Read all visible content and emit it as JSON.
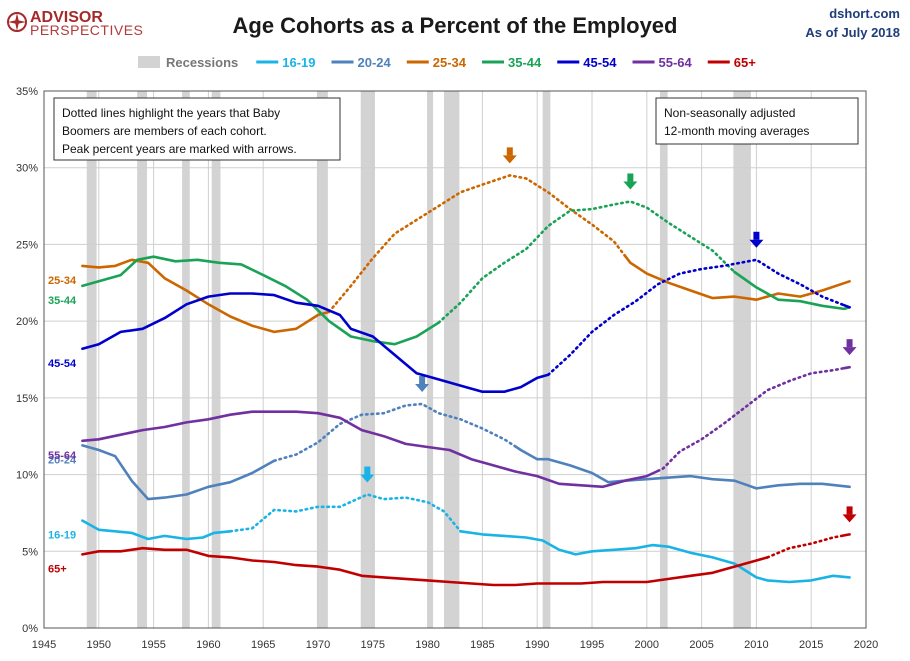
{
  "header": {
    "title": "Age Cohorts as a Percent of the Employed",
    "brand_line1": "ADVISOR",
    "brand_line2": "PERSPECTIVES",
    "source": "dshort.com",
    "date": "As of July 2018"
  },
  "notes": {
    "left": [
      "Dotted lines highlight the years that Baby",
      "Boomers are members of each cohort.",
      "Peak percent years are marked with arrows."
    ],
    "right": [
      "Non-seasonally adjusted",
      "12-month moving averages"
    ]
  },
  "colors": {
    "recession": "#d3d3d3",
    "16-19": "#1ab3e6",
    "20-24": "#4f81bd",
    "25-34": "#cc6600",
    "35-44": "#1aa356",
    "45-54": "#0000cc",
    "55-64": "#7030a0",
    "65+": "#c00000"
  },
  "chart_data": {
    "type": "line",
    "title": "Age Cohorts as a Percent of the Employed",
    "xlim": [
      1945,
      2020
    ],
    "ylim": [
      0,
      35
    ],
    "x_ticks": [
      1945,
      1950,
      1955,
      1960,
      1965,
      1970,
      1975,
      1980,
      1985,
      1990,
      1995,
      2000,
      2005,
      2010,
      2015,
      2020
    ],
    "y_ticks": [
      "0%",
      "5%",
      "10%",
      "15%",
      "20%",
      "25%",
      "30%",
      "35%"
    ],
    "grid": true,
    "legend_position": "top",
    "recession_label": "Recessions",
    "recessions": [
      [
        1948.9,
        1949.8
      ],
      [
        1953.5,
        1954.4
      ],
      [
        1957.6,
        1958.3
      ],
      [
        1960.3,
        1961.1
      ],
      [
        1969.9,
        1970.9
      ],
      [
        1973.9,
        1975.2
      ],
      [
        1980.0,
        1980.5
      ],
      [
        1981.5,
        1982.9
      ],
      [
        1990.5,
        1991.2
      ],
      [
        2001.2,
        2001.9
      ],
      [
        2007.9,
        2009.5
      ]
    ],
    "series": [
      {
        "name": "16-19",
        "label": "16-19",
        "boomer": [
          1962,
          1983
        ],
        "peak_year": 1974.5,
        "points": [
          [
            1948.5,
            7.0
          ],
          [
            1950,
            6.4
          ],
          [
            1951.5,
            6.3
          ],
          [
            1953,
            6.2
          ],
          [
            1954.5,
            5.8
          ],
          [
            1956,
            6.0
          ],
          [
            1958,
            5.8
          ],
          [
            1959.5,
            5.9
          ],
          [
            1960.5,
            6.2
          ],
          [
            1962,
            6.3
          ],
          [
            1964,
            6.5
          ],
          [
            1966,
            7.7
          ],
          [
            1968,
            7.6
          ],
          [
            1970,
            7.9
          ],
          [
            1972,
            7.9
          ],
          [
            1974.5,
            8.7
          ],
          [
            1976,
            8.4
          ],
          [
            1978,
            8.5
          ],
          [
            1980,
            8.2
          ],
          [
            1981.5,
            7.6
          ],
          [
            1983,
            6.3
          ],
          [
            1985,
            6.1
          ],
          [
            1987,
            6.0
          ],
          [
            1989,
            5.9
          ],
          [
            1990.5,
            5.7
          ],
          [
            1992,
            5.1
          ],
          [
            1993.5,
            4.8
          ],
          [
            1995,
            5.0
          ],
          [
            1997,
            5.1
          ],
          [
            1999,
            5.2
          ],
          [
            2000.5,
            5.4
          ],
          [
            2002,
            5.3
          ],
          [
            2004,
            4.9
          ],
          [
            2006,
            4.6
          ],
          [
            2008,
            4.2
          ],
          [
            2010,
            3.3
          ],
          [
            2011,
            3.1
          ],
          [
            2013,
            3.0
          ],
          [
            2015,
            3.1
          ],
          [
            2017,
            3.4
          ],
          [
            2018.5,
            3.3
          ]
        ]
      },
      {
        "name": "20-24",
        "label": "20-24",
        "boomer": [
          1966,
          1988
        ],
        "peak_year": 1979.5,
        "points": [
          [
            1948.5,
            11.9
          ],
          [
            1950,
            11.6
          ],
          [
            1951.5,
            11.2
          ],
          [
            1953,
            9.6
          ],
          [
            1954.5,
            8.4
          ],
          [
            1956,
            8.5
          ],
          [
            1958,
            8.7
          ],
          [
            1960,
            9.2
          ],
          [
            1962,
            9.5
          ],
          [
            1964,
            10.1
          ],
          [
            1966,
            10.9
          ],
          [
            1968,
            11.3
          ],
          [
            1970,
            12.1
          ],
          [
            1972,
            13.3
          ],
          [
            1974,
            13.9
          ],
          [
            1976,
            14.0
          ],
          [
            1978,
            14.5
          ],
          [
            1979.5,
            14.6
          ],
          [
            1981,
            14.0
          ],
          [
            1983,
            13.6
          ],
          [
            1985,
            13.0
          ],
          [
            1987,
            12.3
          ],
          [
            1988.5,
            11.6
          ],
          [
            1990,
            11.0
          ],
          [
            1991,
            11.0
          ],
          [
            1993,
            10.6
          ],
          [
            1995,
            10.1
          ],
          [
            1996.5,
            9.5
          ],
          [
            1998,
            9.6
          ],
          [
            2000,
            9.7
          ],
          [
            2002,
            9.8
          ],
          [
            2004,
            9.9
          ],
          [
            2006,
            9.7
          ],
          [
            2008,
            9.6
          ],
          [
            2010,
            9.1
          ],
          [
            2012,
            9.3
          ],
          [
            2014,
            9.4
          ],
          [
            2016,
            9.4
          ],
          [
            2018.5,
            9.2
          ]
        ]
      },
      {
        "name": "25-34",
        "label": "25-34",
        "boomer": [
          1971,
          1998
        ],
        "peak_year": 1987.5,
        "points": [
          [
            1948.5,
            23.6
          ],
          [
            1950,
            23.5
          ],
          [
            1951.5,
            23.6
          ],
          [
            1953,
            24.0
          ],
          [
            1954.5,
            23.8
          ],
          [
            1956,
            22.8
          ],
          [
            1958,
            22.0
          ],
          [
            1960,
            21.1
          ],
          [
            1962,
            20.3
          ],
          [
            1964,
            19.7
          ],
          [
            1966,
            19.3
          ],
          [
            1968,
            19.5
          ],
          [
            1970,
            20.4
          ],
          [
            1971,
            20.6
          ],
          [
            1973,
            22.3
          ],
          [
            1975,
            24.1
          ],
          [
            1977,
            25.7
          ],
          [
            1979,
            26.6
          ],
          [
            1981,
            27.5
          ],
          [
            1983,
            28.4
          ],
          [
            1985,
            28.9
          ],
          [
            1987.5,
            29.5
          ],
          [
            1989,
            29.3
          ],
          [
            1991,
            28.4
          ],
          [
            1993,
            27.3
          ],
          [
            1995,
            26.3
          ],
          [
            1997,
            25.2
          ],
          [
            1998.5,
            23.8
          ],
          [
            2000,
            23.1
          ],
          [
            2002,
            22.5
          ],
          [
            2004,
            22.0
          ],
          [
            2006,
            21.5
          ],
          [
            2008,
            21.6
          ],
          [
            2010,
            21.4
          ],
          [
            2012,
            21.8
          ],
          [
            2014,
            21.6
          ],
          [
            2016,
            22.0
          ],
          [
            2018.5,
            22.6
          ]
        ]
      },
      {
        "name": "35-44",
        "label": "35-44",
        "boomer": [
          1981,
          2008
        ],
        "peak_year": 1998.5,
        "points": [
          [
            1948.5,
            22.3
          ],
          [
            1950,
            22.6
          ],
          [
            1952,
            23.0
          ],
          [
            1953.5,
            24.0
          ],
          [
            1955,
            24.2
          ],
          [
            1957,
            23.9
          ],
          [
            1959,
            24.0
          ],
          [
            1961,
            23.8
          ],
          [
            1963,
            23.7
          ],
          [
            1965,
            23.0
          ],
          [
            1967,
            22.3
          ],
          [
            1969,
            21.4
          ],
          [
            1971,
            20.0
          ],
          [
            1973,
            19.0
          ],
          [
            1975,
            18.7
          ],
          [
            1977,
            18.5
          ],
          [
            1979,
            19.0
          ],
          [
            1981,
            19.9
          ],
          [
            1983,
            21.2
          ],
          [
            1985,
            22.8
          ],
          [
            1987,
            23.8
          ],
          [
            1989,
            24.7
          ],
          [
            1991,
            26.2
          ],
          [
            1993,
            27.2
          ],
          [
            1995,
            27.3
          ],
          [
            1997,
            27.6
          ],
          [
            1998.5,
            27.8
          ],
          [
            2000,
            27.4
          ],
          [
            2002,
            26.4
          ],
          [
            2004,
            25.5
          ],
          [
            2006,
            24.6
          ],
          [
            2008,
            23.2
          ],
          [
            2010,
            22.2
          ],
          [
            2012,
            21.4
          ],
          [
            2014,
            21.3
          ],
          [
            2016,
            21.0
          ],
          [
            2018,
            20.8
          ],
          [
            2018.5,
            20.9
          ]
        ]
      },
      {
        "name": "45-54",
        "label": "45-54",
        "boomer": [
          1991,
          2018
        ],
        "peak_year": 2010,
        "points": [
          [
            1948.5,
            18.2
          ],
          [
            1950,
            18.5
          ],
          [
            1952,
            19.3
          ],
          [
            1954,
            19.5
          ],
          [
            1956,
            20.2
          ],
          [
            1958,
            21.1
          ],
          [
            1960,
            21.6
          ],
          [
            1962,
            21.8
          ],
          [
            1964,
            21.8
          ],
          [
            1966,
            21.7
          ],
          [
            1968,
            21.2
          ],
          [
            1970,
            21.0
          ],
          [
            1972,
            20.4
          ],
          [
            1973,
            19.5
          ],
          [
            1975,
            19.0
          ],
          [
            1977,
            17.8
          ],
          [
            1979,
            16.6
          ],
          [
            1981,
            16.2
          ],
          [
            1983,
            15.8
          ],
          [
            1985,
            15.4
          ],
          [
            1987,
            15.4
          ],
          [
            1988.5,
            15.7
          ],
          [
            1990,
            16.3
          ],
          [
            1991,
            16.5
          ],
          [
            1993,
            17.8
          ],
          [
            1995,
            19.3
          ],
          [
            1997,
            20.4
          ],
          [
            1999,
            21.3
          ],
          [
            2001,
            22.4
          ],
          [
            2003,
            23.1
          ],
          [
            2005,
            23.4
          ],
          [
            2007,
            23.6
          ],
          [
            2010,
            24.0
          ],
          [
            2012,
            23.1
          ],
          [
            2014,
            22.4
          ],
          [
            2016,
            21.6
          ],
          [
            2018.5,
            20.9
          ]
        ]
      },
      {
        "name": "55-64",
        "label": "55-64",
        "boomer": [
          2001,
          2018
        ],
        "peak_year": 2018.5,
        "points": [
          [
            1948.5,
            12.2
          ],
          [
            1950,
            12.3
          ],
          [
            1952,
            12.6
          ],
          [
            1954,
            12.9
          ],
          [
            1956,
            13.1
          ],
          [
            1958,
            13.4
          ],
          [
            1960,
            13.6
          ],
          [
            1962,
            13.9
          ],
          [
            1964,
            14.1
          ],
          [
            1966,
            14.1
          ],
          [
            1968,
            14.1
          ],
          [
            1970,
            14.0
          ],
          [
            1972,
            13.7
          ],
          [
            1974,
            12.9
          ],
          [
            1976,
            12.5
          ],
          [
            1978,
            12.0
          ],
          [
            1980,
            11.8
          ],
          [
            1982,
            11.6
          ],
          [
            1984,
            11.0
          ],
          [
            1986,
            10.6
          ],
          [
            1988,
            10.2
          ],
          [
            1990,
            9.9
          ],
          [
            1992,
            9.4
          ],
          [
            1994,
            9.3
          ],
          [
            1996,
            9.2
          ],
          [
            1998,
            9.6
          ],
          [
            2000,
            9.9
          ],
          [
            2001.5,
            10.4
          ],
          [
            2003,
            11.5
          ],
          [
            2005,
            12.3
          ],
          [
            2007,
            13.3
          ],
          [
            2009,
            14.4
          ],
          [
            2011,
            15.5
          ],
          [
            2013,
            16.1
          ],
          [
            2015,
            16.6
          ],
          [
            2017,
            16.8
          ],
          [
            2018.5,
            17.0
          ]
        ]
      },
      {
        "name": "65+",
        "label": "65+",
        "boomer": [
          2011,
          2018
        ],
        "peak_year": 2018.5,
        "points": [
          [
            1948.5,
            4.8
          ],
          [
            1950,
            5.0
          ],
          [
            1952,
            5.0
          ],
          [
            1954,
            5.2
          ],
          [
            1956,
            5.1
          ],
          [
            1958,
            5.1
          ],
          [
            1960,
            4.7
          ],
          [
            1962,
            4.6
          ],
          [
            1964,
            4.4
          ],
          [
            1966,
            4.3
          ],
          [
            1968,
            4.1
          ],
          [
            1970,
            4.0
          ],
          [
            1972,
            3.8
          ],
          [
            1974,
            3.4
          ],
          [
            1976,
            3.3
          ],
          [
            1978,
            3.2
          ],
          [
            1980,
            3.1
          ],
          [
            1982,
            3.0
          ],
          [
            1984,
            2.9
          ],
          [
            1986,
            2.8
          ],
          [
            1988,
            2.8
          ],
          [
            1990,
            2.9
          ],
          [
            1992,
            2.9
          ],
          [
            1994,
            2.9
          ],
          [
            1996,
            3.0
          ],
          [
            1998,
            3.0
          ],
          [
            2000,
            3.0
          ],
          [
            2002,
            3.2
          ],
          [
            2004,
            3.4
          ],
          [
            2006,
            3.6
          ],
          [
            2008,
            4.0
          ],
          [
            2010,
            4.4
          ],
          [
            2011,
            4.6
          ],
          [
            2013,
            5.2
          ],
          [
            2015,
            5.5
          ],
          [
            2017,
            5.9
          ],
          [
            2018.5,
            6.1
          ]
        ]
      }
    ]
  }
}
